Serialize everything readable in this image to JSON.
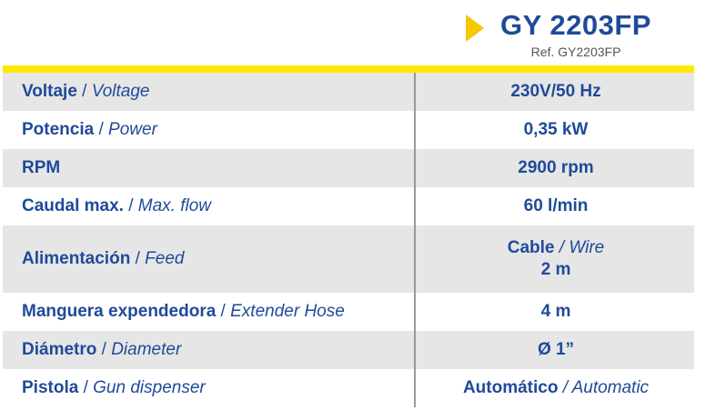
{
  "header": {
    "model": "GY 2203FP",
    "ref": "Ref. GY2203FP"
  },
  "colors": {
    "brand_blue": "#1f4a9a",
    "accent_yellow": "#fde900",
    "arrow_yellow": "#f5c800",
    "row_shade": "#e6e6e6"
  },
  "rows": [
    {
      "label_es": "Voltaje",
      "label_sep": " / ",
      "label_en": "Voltage",
      "value": "230V/50 Hz"
    },
    {
      "label_es": "Potencia",
      "label_sep": " / ",
      "label_en": "Power",
      "value": "0,35 kW"
    },
    {
      "label_es": "RPM",
      "label_sep": "",
      "label_en": "",
      "value": "2900 rpm"
    },
    {
      "label_es": "Caudal max.",
      "label_sep": " / ",
      "label_en": "Max. flow",
      "value": "60 l/min"
    },
    {
      "label_es": "Alimentación",
      "label_sep": " / ",
      "label_en": "Feed",
      "value_es": "Cable",
      "value_sep": " / ",
      "value_en": "Wire",
      "value_line2": "2 m"
    },
    {
      "label_es": "Manguera expendedora",
      "label_sep": " / ",
      "label_en": "Extender Hose",
      "value": "4 m"
    },
    {
      "label_es": "Diámetro",
      "label_sep": " / ",
      "label_en": "Diameter",
      "value": "Ø 1”"
    },
    {
      "label_es": "Pistola",
      "label_sep": " / ",
      "label_en": "Gun dispenser",
      "value_es": "Automático",
      "value_sep": " / ",
      "value_en": "Automatic"
    }
  ]
}
